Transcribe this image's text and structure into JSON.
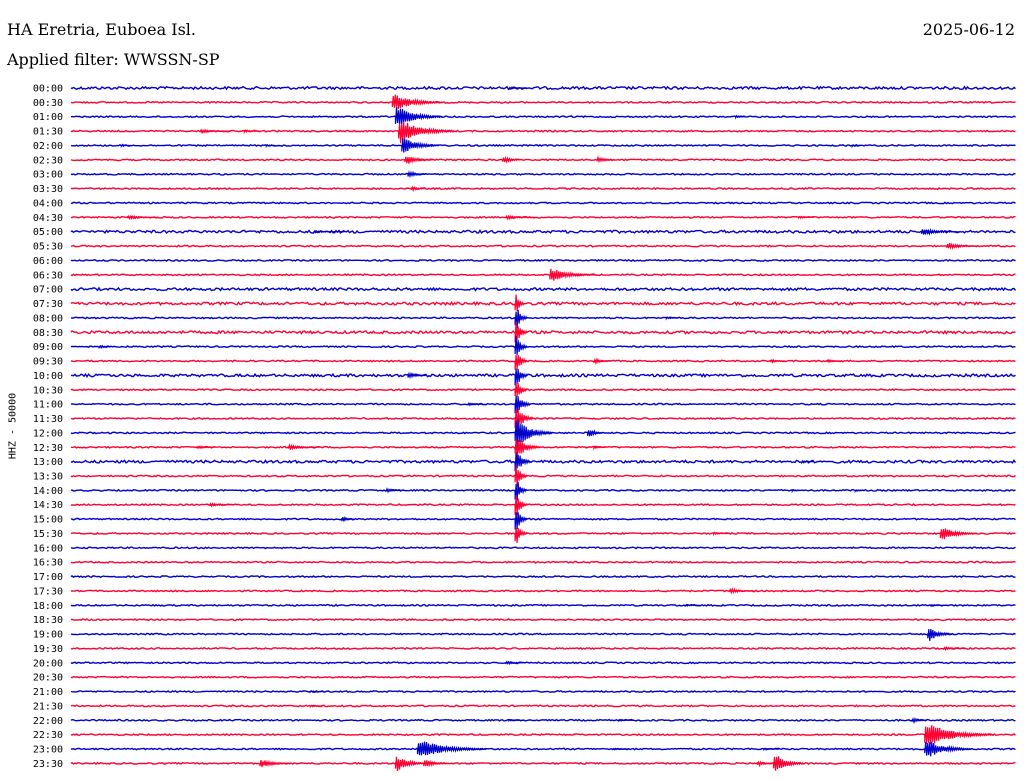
{
  "header": {
    "station": "HA Eretria, Euboea Isl.",
    "filter": "Applied filter: WWSSN-SP",
    "date": "2025-06-12"
  },
  "chart_data": {
    "type": "line",
    "title": "HA Eretria, Euboea Isl.",
    "subtitle": "Applied filter: WWSSN-SP",
    "date": "2025-06-12",
    "ylabel": "HHZ - 50000",
    "row_minutes": 30,
    "colors": {
      "even": "#0000cc",
      "odd": "#ff0033"
    },
    "rows": [
      "00:00",
      "00:30",
      "01:00",
      "01:30",
      "02:00",
      "02:30",
      "03:00",
      "03:30",
      "04:00",
      "04:30",
      "05:00",
      "05:30",
      "06:00",
      "06:30",
      "07:00",
      "07:30",
      "08:00",
      "08:30",
      "09:00",
      "09:30",
      "10:00",
      "10:30",
      "11:00",
      "11:30",
      "12:00",
      "12:30",
      "13:00",
      "13:30",
      "14:00",
      "14:30",
      "15:00",
      "15:30",
      "16:00",
      "16:30",
      "17:00",
      "17:30",
      "18:00",
      "18:30",
      "19:00",
      "19:30",
      "20:00",
      "20:30",
      "21:00",
      "21:30",
      "22:00",
      "22:30",
      "23:00",
      "23:30"
    ],
    "events": [
      {
        "row": 1,
        "minute": 10.2,
        "amp": 10,
        "dur": 1.6
      },
      {
        "row": 2,
        "minute": 10.3,
        "amp": 13,
        "dur": 1.5
      },
      {
        "row": 3,
        "minute": 10.4,
        "amp": 14,
        "dur": 1.8
      },
      {
        "row": 4,
        "minute": 10.5,
        "amp": 10,
        "dur": 1.2
      },
      {
        "row": 5,
        "minute": 10.6,
        "amp": 6,
        "dur": 0.9
      },
      {
        "row": 6,
        "minute": 10.7,
        "amp": 4,
        "dur": 0.6
      },
      {
        "row": 7,
        "minute": 10.8,
        "amp": 3,
        "dur": 0.5
      },
      {
        "row": 3,
        "minute": 4.1,
        "amp": 2,
        "dur": 1.0
      },
      {
        "row": 3,
        "minute": 5.5,
        "amp": 1.5,
        "dur": 0.5
      },
      {
        "row": 4,
        "minute": 1.6,
        "amp": 1.5,
        "dur": 0.3
      },
      {
        "row": 4,
        "minute": 6.2,
        "amp": 1.5,
        "dur": 0.3
      },
      {
        "row": 4,
        "minute": 24.8,
        "amp": 1.5,
        "dur": 0.3
      },
      {
        "row": 5,
        "minute": 13.7,
        "amp": 5,
        "dur": 0.6
      },
      {
        "row": 5,
        "minute": 16.7,
        "amp": 3.5,
        "dur": 0.6
      },
      {
        "row": 0,
        "minute": 13.9,
        "amp": 1.5,
        "dur": 0.6
      },
      {
        "row": 2,
        "minute": 21.1,
        "amp": 2,
        "dur": 0.3
      },
      {
        "row": 9,
        "minute": 1.8,
        "amp": 2,
        "dur": 1.0
      },
      {
        "row": 9,
        "minute": 13.8,
        "amp": 2,
        "dur": 1.0
      },
      {
        "row": 9,
        "minute": 23.1,
        "amp": 1.5,
        "dur": 0.5
      },
      {
        "row": 10,
        "minute": 27.0,
        "amp": 4,
        "dur": 1.2
      },
      {
        "row": 11,
        "minute": 27.8,
        "amp": 4,
        "dur": 1.0
      },
      {
        "row": 10,
        "minute": 7.7,
        "amp": 1.2,
        "dur": 1.0
      },
      {
        "row": 13,
        "minute": 15.2,
        "amp": 8,
        "dur": 1.5
      },
      {
        "row": 16,
        "minute": 18.9,
        "amp": 1.5,
        "dur": 0.4
      },
      {
        "row": 18,
        "minute": 0.9,
        "amp": 2,
        "dur": 0.4
      },
      {
        "row": 19,
        "minute": 16.6,
        "amp": 3,
        "dur": 0.6
      },
      {
        "row": 19,
        "minute": 22.2,
        "amp": 2,
        "dur": 0.5
      },
      {
        "row": 19,
        "minute": 24.0,
        "amp": 2,
        "dur": 0.5
      },
      {
        "row": 20,
        "minute": 10.7,
        "amp": 4,
        "dur": 0.6
      },
      {
        "row": 22,
        "minute": 12.6,
        "amp": 2,
        "dur": 0.5
      },
      {
        "row": 25,
        "minute": 4.0,
        "amp": 2,
        "dur": 0.6
      },
      {
        "row": 25,
        "minute": 6.9,
        "amp": 3,
        "dur": 1.0
      },
      {
        "row": 15,
        "minute": 14.1,
        "amp": 16,
        "dur": 0.3
      },
      {
        "row": 16,
        "minute": 14.1,
        "amp": 18,
        "dur": 0.4
      },
      {
        "row": 17,
        "minute": 14.1,
        "amp": 18,
        "dur": 0.4
      },
      {
        "row": 18,
        "minute": 14.1,
        "amp": 18,
        "dur": 0.4
      },
      {
        "row": 19,
        "minute": 14.1,
        "amp": 18,
        "dur": 0.4
      },
      {
        "row": 20,
        "minute": 14.1,
        "amp": 18,
        "dur": 0.4
      },
      {
        "row": 21,
        "minute": 14.1,
        "amp": 18,
        "dur": 0.4
      },
      {
        "row": 22,
        "minute": 14.1,
        "amp": 18,
        "dur": 0.5
      },
      {
        "row": 23,
        "minute": 14.1,
        "amp": 18,
        "dur": 0.6
      },
      {
        "row": 24,
        "minute": 14.1,
        "amp": 18,
        "dur": 1.2
      },
      {
        "row": 25,
        "minute": 14.1,
        "amp": 16,
        "dur": 0.8
      },
      {
        "row": 26,
        "minute": 14.1,
        "amp": 18,
        "dur": 0.5
      },
      {
        "row": 27,
        "minute": 14.1,
        "amp": 18,
        "dur": 0.4
      },
      {
        "row": 28,
        "minute": 14.1,
        "amp": 18,
        "dur": 0.4
      },
      {
        "row": 29,
        "minute": 14.1,
        "amp": 18,
        "dur": 0.4
      },
      {
        "row": 30,
        "minute": 14.1,
        "amp": 18,
        "dur": 0.4
      },
      {
        "row": 31,
        "minute": 14.1,
        "amp": 16,
        "dur": 0.4
      },
      {
        "row": 24,
        "minute": 16.4,
        "amp": 7,
        "dur": 0.5
      },
      {
        "row": 25,
        "minute": 16.6,
        "amp": 2,
        "dur": 0.4
      },
      {
        "row": 26,
        "minute": 23.2,
        "amp": 2,
        "dur": 0.4
      },
      {
        "row": 28,
        "minute": 10.0,
        "amp": 2.5,
        "dur": 0.6
      },
      {
        "row": 28,
        "minute": 22.9,
        "amp": 1.5,
        "dur": 0.3
      },
      {
        "row": 28,
        "minute": 24.9,
        "amp": 1.5,
        "dur": 0.3
      },
      {
        "row": 29,
        "minute": 4.4,
        "amp": 2,
        "dur": 0.8
      },
      {
        "row": 30,
        "minute": 8.6,
        "amp": 4,
        "dur": 0.4
      },
      {
        "row": 31,
        "minute": 27.6,
        "amp": 8,
        "dur": 1.2
      },
      {
        "row": 31,
        "minute": 20.4,
        "amp": 1.5,
        "dur": 0.5
      },
      {
        "row": 35,
        "minute": 20.9,
        "amp": 3,
        "dur": 0.8
      },
      {
        "row": 36,
        "minute": 19.5,
        "amp": 1.2,
        "dur": 0.5
      },
      {
        "row": 36,
        "minute": 27.3,
        "amp": 1.2,
        "dur": 0.5
      },
      {
        "row": 38,
        "minute": 27.2,
        "amp": 9,
        "dur": 0.8
      },
      {
        "row": 39,
        "minute": 27.7,
        "amp": 2,
        "dur": 0.7
      },
      {
        "row": 40,
        "minute": 13.8,
        "amp": 2,
        "dur": 0.6
      },
      {
        "row": 42,
        "minute": 7.6,
        "amp": 1.2,
        "dur": 0.4
      },
      {
        "row": 43,
        "minute": 7.6,
        "amp": 1.2,
        "dur": 0.4
      },
      {
        "row": 44,
        "minute": 13.9,
        "amp": 1.2,
        "dur": 0.5
      },
      {
        "row": 44,
        "minute": 17.4,
        "amp": 1.2,
        "dur": 0.5
      },
      {
        "row": 44,
        "minute": 26.7,
        "amp": 3,
        "dur": 0.5
      },
      {
        "row": 45,
        "minute": 27.1,
        "amp": 14,
        "dur": 2.2
      },
      {
        "row": 46,
        "minute": 27.1,
        "amp": 12,
        "dur": 1.5
      },
      {
        "row": 46,
        "minute": 11.0,
        "amp": 11,
        "dur": 2.2
      },
      {
        "row": 47,
        "minute": 10.3,
        "amp": 10,
        "dur": 1.0
      },
      {
        "row": 46,
        "minute": 17.2,
        "amp": 1.2,
        "dur": 0.5
      },
      {
        "row": 46,
        "minute": 22.0,
        "amp": 1.2,
        "dur": 0.5
      },
      {
        "row": 47,
        "minute": 6.0,
        "amp": 5,
        "dur": 1.0
      },
      {
        "row": 47,
        "minute": 11.2,
        "amp": 5,
        "dur": 0.8
      },
      {
        "row": 47,
        "minute": 22.3,
        "amp": 12,
        "dur": 1.0
      },
      {
        "row": 47,
        "minute": 21.8,
        "amp": 3,
        "dur": 0.5
      }
    ]
  }
}
